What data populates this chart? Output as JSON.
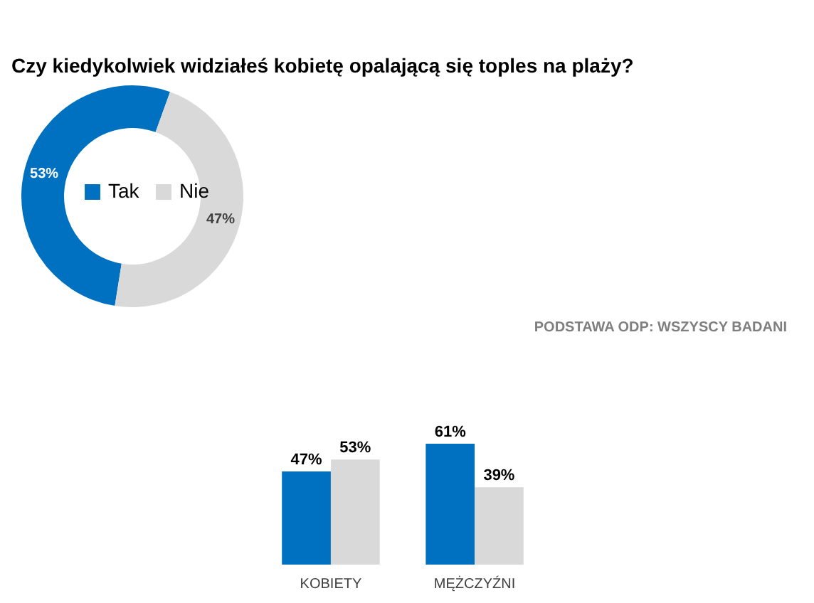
{
  "chart_data": [
    {
      "type": "donut",
      "title": "Czy kiedykolwiek widziałeś kobietę opalającą się toples na plaży?",
      "categories": [
        "Tak",
        "Nie"
      ],
      "values": [
        53,
        47
      ],
      "colors": [
        "#0070c0",
        "#d9d9d9"
      ],
      "value_labels": [
        "53%",
        "47%"
      ],
      "legend": "center",
      "annotations": [
        "PODSTAWA ODP: WSZYSCY BADANI"
      ]
    },
    {
      "type": "bar",
      "categories": [
        "KOBIETY",
        "MĘŻCZYŹNI"
      ],
      "series": [
        {
          "color": "#0070c0",
          "values": [
            47,
            61
          ],
          "value_labels": [
            "47%",
            "61%"
          ]
        },
        {
          "color": "#d9d9d9",
          "values": [
            53,
            39
          ],
          "value_labels": [
            "53%",
            "39%"
          ]
        }
      ]
    }
  ]
}
